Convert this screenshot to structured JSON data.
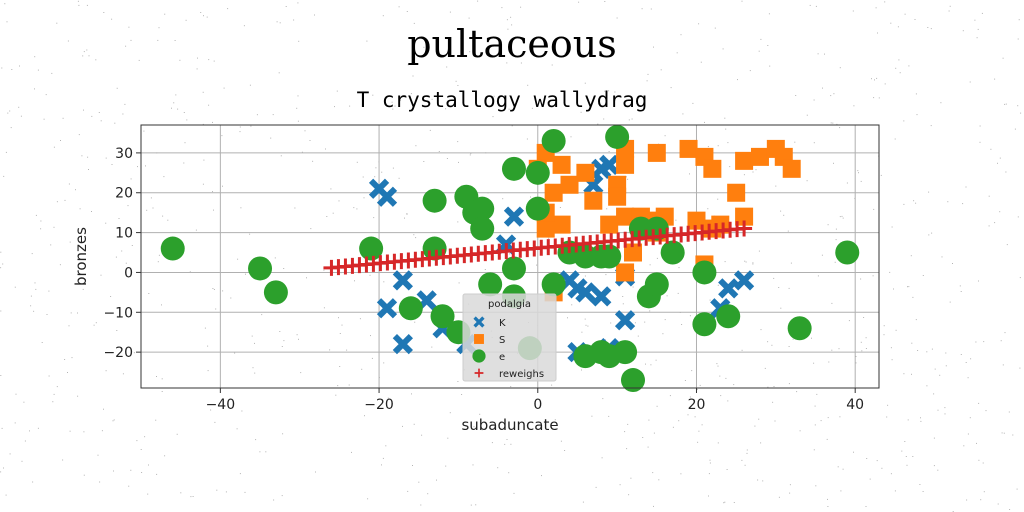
{
  "figure": {
    "suptitle": "pultaceous",
    "title": "T crystallogy wallydrag"
  },
  "chart_data": {
    "type": "scatter",
    "title": "T crystallogy wallydrag",
    "xlabel": "subaduncate",
    "ylabel": "bronzes",
    "xlim": [
      -50,
      43
    ],
    "ylim": [
      -29,
      37
    ],
    "xticks": [
      -40,
      -20,
      0,
      20,
      40
    ],
    "yticks": [
      -20,
      -10,
      0,
      10,
      20,
      30
    ],
    "grid": true,
    "legend": {
      "title": "podalgia",
      "placement": "lower-center"
    },
    "series": [
      {
        "name": "K",
        "marker": "x",
        "color": "#1f77b4",
        "points": [
          [
            -20,
            21
          ],
          [
            -19,
            19
          ],
          [
            -8,
            16
          ],
          [
            -3,
            14
          ],
          [
            -4,
            7
          ],
          [
            -17,
            -2
          ],
          [
            -14,
            -7
          ],
          [
            -19,
            -9
          ],
          [
            -17,
            -18
          ],
          [
            -12,
            -14
          ],
          [
            -9,
            -18
          ],
          [
            7,
            22
          ],
          [
            8,
            26
          ],
          [
            9,
            27
          ],
          [
            4,
            -2
          ],
          [
            5,
            -4
          ],
          [
            6,
            -5
          ],
          [
            8,
            -6
          ],
          [
            11,
            -1
          ],
          [
            11,
            -12
          ],
          [
            24,
            -4
          ],
          [
            23,
            -9
          ],
          [
            26,
            -2
          ],
          [
            5,
            -20
          ],
          [
            9,
            -19
          ]
        ]
      },
      {
        "name": "S",
        "marker": "square",
        "color": "#ff7f0e",
        "points": [
          [
            1,
            30
          ],
          [
            3,
            27
          ],
          [
            4,
            22
          ],
          [
            2,
            20
          ],
          [
            6,
            25
          ],
          [
            7,
            18
          ],
          [
            11,
            31
          ],
          [
            11,
            27
          ],
          [
            10,
            22
          ],
          [
            10,
            19
          ],
          [
            15,
            30
          ],
          [
            19,
            31
          ],
          [
            21,
            29
          ],
          [
            22,
            26
          ],
          [
            26,
            28
          ],
          [
            28,
            29
          ],
          [
            30,
            31
          ],
          [
            31,
            29
          ],
          [
            32,
            26
          ],
          [
            25,
            20
          ],
          [
            26,
            14
          ],
          [
            22,
            11
          ],
          [
            23,
            12
          ],
          [
            20,
            13
          ],
          [
            21,
            2
          ],
          [
            9,
            12
          ],
          [
            11,
            14
          ],
          [
            13,
            14
          ],
          [
            14,
            13
          ],
          [
            16,
            14
          ],
          [
            15,
            10
          ],
          [
            11,
            0
          ],
          [
            12,
            5
          ],
          [
            1,
            11
          ],
          [
            3,
            12
          ],
          [
            1,
            15
          ],
          [
            0,
            26
          ],
          [
            2,
            -5
          ]
        ]
      },
      {
        "name": "e",
        "marker": "circle",
        "color": "#2ca02c",
        "points": [
          [
            -46,
            6
          ],
          [
            -35,
            1
          ],
          [
            -33,
            -5
          ],
          [
            -21,
            6
          ],
          [
            -13,
            18
          ],
          [
            -13,
            6
          ],
          [
            -9,
            19
          ],
          [
            -8,
            15
          ],
          [
            -7,
            16
          ],
          [
            -7,
            11
          ],
          [
            -3,
            26
          ],
          [
            0,
            25
          ],
          [
            0,
            16
          ],
          [
            2,
            33
          ],
          [
            10,
            34
          ],
          [
            -16,
            -9
          ],
          [
            -12,
            -11
          ],
          [
            -10,
            -15
          ],
          [
            -6,
            -3
          ],
          [
            -3,
            -6
          ],
          [
            -3,
            1
          ],
          [
            2,
            -3
          ],
          [
            4,
            5
          ],
          [
            6,
            4
          ],
          [
            8,
            4
          ],
          [
            9,
            4
          ],
          [
            13,
            11
          ],
          [
            15,
            11
          ],
          [
            17,
            5
          ],
          [
            14,
            -6
          ],
          [
            15,
            -3
          ],
          [
            12,
            -27
          ],
          [
            21,
            0
          ],
          [
            21,
            -13
          ],
          [
            24,
            -11
          ],
          [
            33,
            -14
          ],
          [
            39,
            5
          ],
          [
            -1,
            -19
          ],
          [
            6,
            -21
          ],
          [
            8,
            -20
          ],
          [
            9,
            -21
          ],
          [
            11,
            -20
          ]
        ]
      },
      {
        "name": "reweighs",
        "marker": "plus",
        "color": "#d62728",
        "line": {
          "x0": -26,
          "x1": 26,
          "slope": 0.19,
          "intercept": 6.1,
          "count": 60
        }
      }
    ]
  }
}
